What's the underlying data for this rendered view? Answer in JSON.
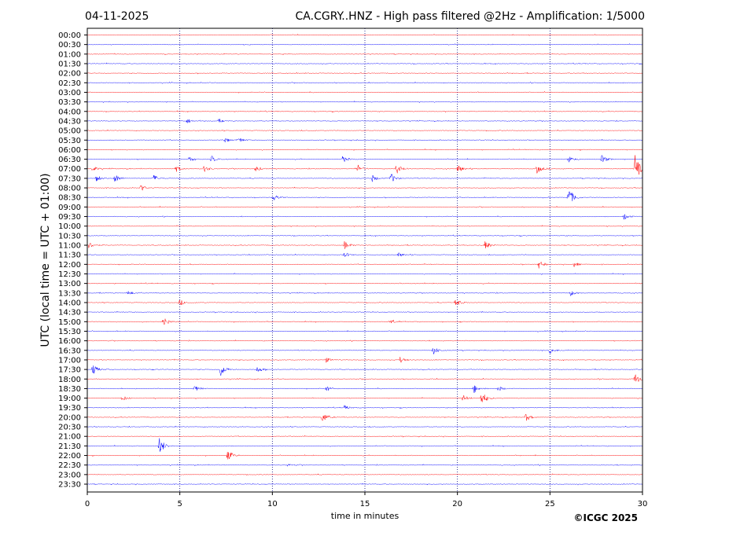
{
  "header": {
    "date": "04-11-2025",
    "title": "CA.CGRY..HNZ - High pass filtered @2Hz - Amplification: 1/5000"
  },
  "copyright": "©ICGC 2025",
  "chart_data": {
    "type": "line",
    "xlabel": "time in minutes",
    "ylabel": "UTC (local time = UTC + 01:00)",
    "xlim": [
      0,
      30
    ],
    "x_ticks": [
      "0",
      "5",
      "10",
      "15",
      "20",
      "25",
      "30"
    ],
    "x_tick_values": [
      0,
      5,
      10,
      15,
      20,
      25,
      30
    ],
    "row_labels": [
      "00:00",
      "00:30",
      "01:00",
      "01:30",
      "02:00",
      "02:30",
      "03:00",
      "03:30",
      "04:00",
      "04:30",
      "05:00",
      "05:30",
      "06:00",
      "06:30",
      "07:00",
      "07:30",
      "08:00",
      "08:30",
      "09:00",
      "09:30",
      "10:00",
      "10:30",
      "11:00",
      "11:30",
      "12:00",
      "12:30",
      "13:00",
      "13:30",
      "14:00",
      "14:30",
      "15:00",
      "15:30",
      "16:00",
      "16:30",
      "17:00",
      "17:30",
      "18:00",
      "18:30",
      "19:00",
      "19:30",
      "20:00",
      "20:30",
      "21:00",
      "21:30",
      "22:00",
      "22:30",
      "23:00",
      "23:30"
    ],
    "row_colors": [
      "#ff0000",
      "#0000ff"
    ],
    "grid": "vertical dotted at 5-minute intervals",
    "rows_activity": [
      {
        "row": "04:30",
        "events": [
          [
            5.4,
            0.25
          ],
          [
            7.1,
            0.2
          ]
        ]
      },
      {
        "row": "05:30",
        "events": [
          [
            7.4,
            0.3
          ],
          [
            8.2,
            0.25
          ]
        ]
      },
      {
        "row": "06:30",
        "events": [
          [
            5.5,
            0.3
          ],
          [
            6.7,
            0.35
          ],
          [
            13.8,
            0.35
          ],
          [
            26.0,
            0.35
          ],
          [
            27.8,
            0.45
          ]
        ]
      },
      {
        "row": "07:00",
        "events": [
          [
            0.3,
            0.3
          ],
          [
            4.8,
            0.3
          ],
          [
            6.3,
            0.35
          ],
          [
            9.1,
            0.3
          ],
          [
            14.6,
            0.45
          ],
          [
            16.7,
            0.55
          ],
          [
            20.0,
            0.45
          ],
          [
            24.3,
            0.5
          ],
          [
            29.6,
            1.5
          ]
        ]
      },
      {
        "row": "07:30",
        "events": [
          [
            0.5,
            0.35
          ],
          [
            1.5,
            0.45
          ],
          [
            3.6,
            0.35
          ],
          [
            15.4,
            0.35
          ],
          [
            16.4,
            0.55
          ]
        ]
      },
      {
        "row": "08:00",
        "events": [
          [
            2.9,
            0.35
          ]
        ]
      },
      {
        "row": "08:30",
        "events": [
          [
            10.1,
            0.3
          ],
          [
            26.0,
            1.05
          ]
        ]
      },
      {
        "row": "09:30",
        "events": [
          [
            29.0,
            0.35
          ]
        ]
      },
      {
        "row": "11:00",
        "events": [
          [
            0.1,
            0.35
          ],
          [
            13.9,
            0.45
          ],
          [
            21.5,
            0.45
          ]
        ]
      },
      {
        "row": "11:30",
        "events": [
          [
            13.9,
            0.3
          ],
          [
            16.8,
            0.25
          ]
        ]
      },
      {
        "row": "12:00",
        "events": [
          [
            24.4,
            0.4
          ],
          [
            26.3,
            0.25
          ]
        ]
      },
      {
        "row": "13:30",
        "events": [
          [
            2.2,
            0.25
          ],
          [
            26.1,
            0.3
          ]
        ]
      },
      {
        "row": "14:00",
        "events": [
          [
            5.0,
            0.3
          ],
          [
            19.9,
            0.45
          ]
        ]
      },
      {
        "row": "15:00",
        "events": [
          [
            4.1,
            0.55
          ],
          [
            16.4,
            0.2
          ]
        ]
      },
      {
        "row": "16:30",
        "events": [
          [
            18.7,
            0.45
          ],
          [
            25.0,
            0.35
          ]
        ]
      },
      {
        "row": "17:00",
        "events": [
          [
            12.9,
            0.25
          ],
          [
            16.9,
            0.3
          ]
        ]
      },
      {
        "row": "17:30",
        "events": [
          [
            0.3,
            0.55
          ],
          [
            7.2,
            0.75
          ],
          [
            9.2,
            0.35
          ]
        ]
      },
      {
        "row": "18:00",
        "events": [
          [
            29.6,
            0.6
          ]
        ]
      },
      {
        "row": "18:30",
        "events": [
          [
            5.8,
            0.3
          ],
          [
            12.9,
            0.3
          ],
          [
            20.9,
            0.45
          ],
          [
            22.2,
            0.3
          ]
        ]
      },
      {
        "row": "19:00",
        "events": [
          [
            1.9,
            0.3
          ],
          [
            20.3,
            0.35
          ],
          [
            21.3,
            0.75
          ]
        ]
      },
      {
        "row": "19:30",
        "events": [
          [
            13.9,
            0.25
          ]
        ]
      },
      {
        "row": "20:00",
        "events": [
          [
            12.7,
            0.6
          ],
          [
            23.7,
            0.4
          ]
        ]
      },
      {
        "row": "21:30",
        "events": [
          [
            3.9,
            0.9
          ]
        ]
      },
      {
        "row": "22:00",
        "events": [
          [
            7.6,
            0.6
          ]
        ]
      },
      {
        "row": "22:30",
        "events": [
          [
            10.8,
            0.15
          ]
        ]
      }
    ]
  }
}
